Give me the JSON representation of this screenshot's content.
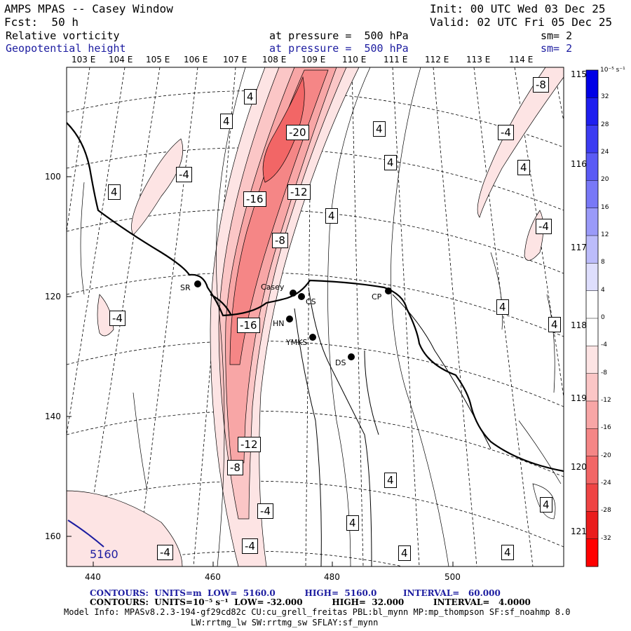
{
  "header": {
    "model": "AMPS MPAS -- Casey Window",
    "init": "Init: 00 UTC Wed 03 Dec 25",
    "fcst": "Fcst:  50 h",
    "valid": "Valid: 02 UTC Fri 05 Dec 25",
    "field1": {
      "name": "Relative vorticity",
      "level": "at pressure =  500 hPa",
      "sm": "sm= 2"
    },
    "field2": {
      "name": "Geopotential height",
      "level": "at pressure =  500 hPa",
      "sm": "sm= 2"
    }
  },
  "top_lon_labels": [
    "103 E",
    "104 E",
    "105 E",
    "106 E",
    "107 E",
    "108 E",
    "109 E",
    "110 E",
    "111 E",
    "112 E",
    "113 E",
    "114 E"
  ],
  "right_lon_labels": [
    "115 E",
    "116 E",
    "117 E",
    "118 E",
    "119 E",
    "120 E",
    "121 E"
  ],
  "x_ticks": [
    "440",
    "460",
    "480",
    "500"
  ],
  "y_ticks": [
    "100",
    "120",
    "140",
    "160"
  ],
  "colorbar": {
    "units": "10⁻⁵ s⁻¹",
    "tick_labels": [
      "32",
      "28",
      "24",
      "20",
      "16",
      "12",
      "8",
      "4",
      "0",
      "-4",
      "-8",
      "-12",
      "-16",
      "-20",
      "-24",
      "-28",
      "-32"
    ],
    "colors": [
      "#0000e6",
      "#1e1eef",
      "#3c3cf2",
      "#5a5af5",
      "#7878f7",
      "#9a9af9",
      "#bcbcfb",
      "#dedefd",
      "#ffffff",
      "#ffffff",
      "#fde4e4",
      "#fbc6c6",
      "#f8a6a6",
      "#f58686",
      "#f26666",
      "#ef4444",
      "#ea1c1c",
      "#ff0000"
    ]
  },
  "contour_labels": [
    "-20",
    "-16",
    "-12",
    "-8",
    "-16",
    "-12",
    "-8",
    "-4",
    "-4",
    "-4",
    "-4",
    "-4",
    "-4",
    "-4",
    "-8",
    "4",
    "4",
    "4",
    "4",
    "4",
    "4",
    "4",
    "4",
    "4",
    "4",
    "4",
    "4",
    "4",
    "4",
    "4"
  ],
  "height_label": "5160",
  "stations": [
    "Casey",
    "CS",
    "SR",
    "HN",
    "YMKS",
    "DS",
    "CP"
  ],
  "footer": {
    "line1": "CONTOURS:  UNITS=m  LOW=  5160.0          HIGH=  5160.0         INTERVAL=   60.000",
    "line2": "CONTOURS:  UNITS=10⁻⁵ s⁻¹  LOW= -32.000          HIGH=  32.000          INTERVAL=   4.0000",
    "line3": "Model Info: MPASv8.2.3-194-gf29cd82c CU:cu_grell_freitas PBL:bl_mynn MP:mp_thompson SF:sf_noahmp 8.0",
    "line4": "LW:rrtmg_lw SW:rrtmg_sw SFLAY:sf_mynn"
  }
}
